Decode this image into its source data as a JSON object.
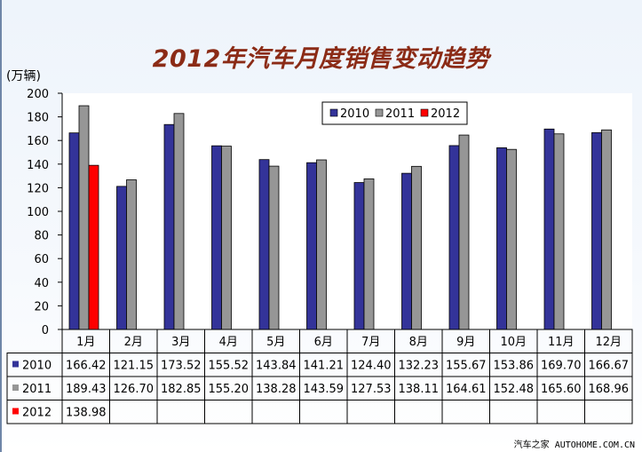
{
  "unit_label": "(万辆)",
  "watermark": "汽车之家 AUTOHOME.COM.CN",
  "colors": {
    "2010": "#333399",
    "2011": "#969696",
    "2012": "#ff0000",
    "title": "#8b2b16"
  },
  "chart_data": {
    "type": "bar",
    "title": "2012年汽车月度销售变动趋势",
    "xlabel": "",
    "ylabel": "(万辆)",
    "ylim": [
      0,
      200
    ],
    "yticks": [
      0,
      20,
      40,
      60,
      80,
      100,
      120,
      140,
      160,
      180,
      200
    ],
    "grid": false,
    "legend": "top-right",
    "categories": [
      "1月",
      "2月",
      "3月",
      "4月",
      "5月",
      "6月",
      "7月",
      "8月",
      "9月",
      "10月",
      "11月",
      "12月"
    ],
    "series": [
      {
        "name": "2010",
        "values": [
          166.42,
          121.15,
          173.52,
          155.52,
          143.84,
          141.21,
          124.4,
          132.23,
          155.67,
          153.86,
          169.7,
          166.67
        ]
      },
      {
        "name": "2011",
        "values": [
          189.43,
          126.7,
          182.85,
          155.2,
          138.28,
          143.59,
          127.53,
          138.11,
          164.61,
          152.48,
          165.6,
          168.96
        ]
      },
      {
        "name": "2012",
        "values": [
          138.98,
          null,
          null,
          null,
          null,
          null,
          null,
          null,
          null,
          null,
          null,
          null
        ]
      }
    ],
    "table": {
      "rows": [
        {
          "name": "2010",
          "cells": [
            "166.42",
            "121.15",
            "173.52",
            "155.52",
            "143.84",
            "141.21",
            "124.40",
            "132.23",
            "155.67",
            "153.86",
            "169.70",
            "166.67"
          ]
        },
        {
          "name": "2011",
          "cells": [
            "189.43",
            "126.70",
            "182.85",
            "155.20",
            "138.28",
            "143.59",
            "127.53",
            "138.11",
            "164.61",
            "152.48",
            "165.60",
            "168.96"
          ]
        },
        {
          "name": "2012",
          "cells": [
            "138.98",
            "",
            "",
            "",
            "",
            "",
            "",
            "",
            "",
            "",
            "",
            ""
          ]
        }
      ]
    }
  }
}
